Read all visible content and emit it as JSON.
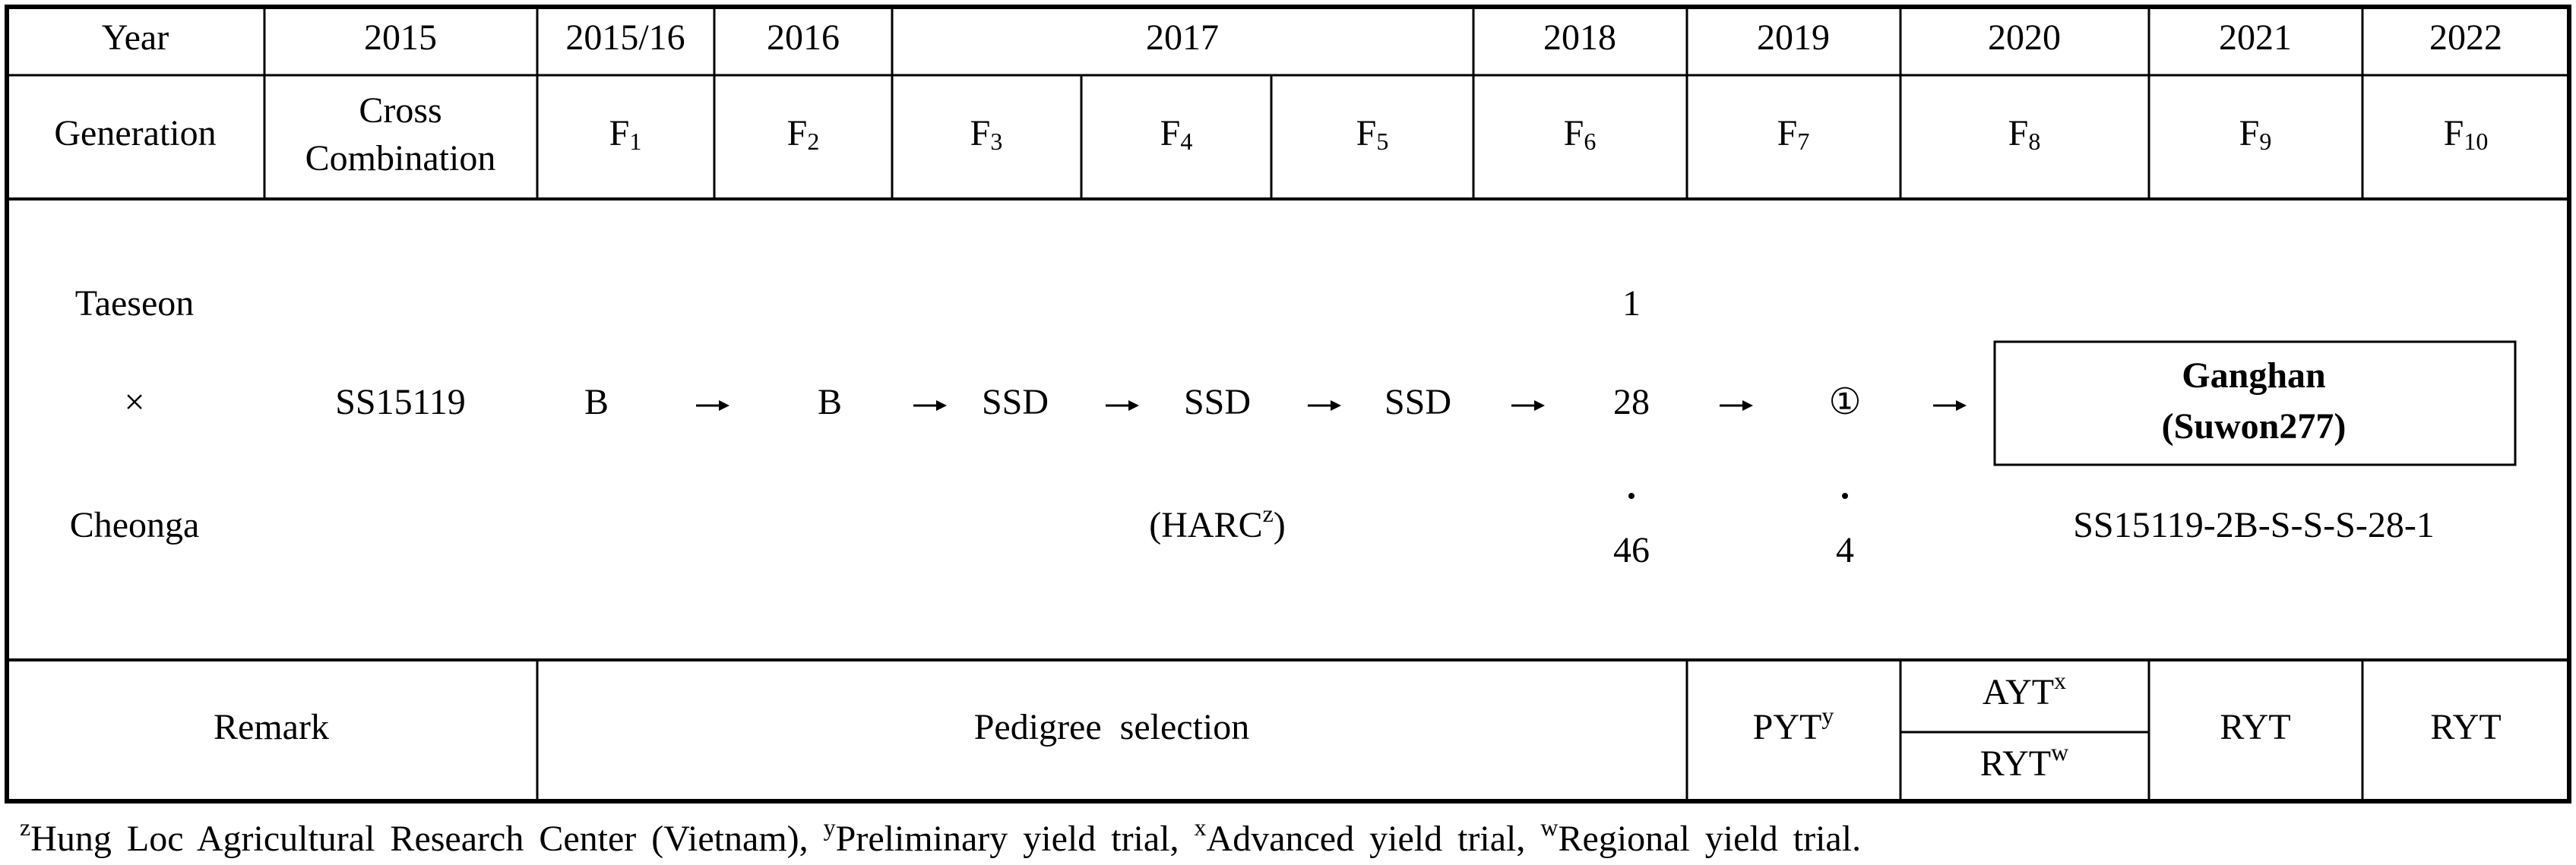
{
  "table": {
    "year_row": [
      "Year",
      "2015",
      "2015/16",
      "2016",
      "2017",
      "2018",
      "2019",
      "2020",
      "2021",
      "2022"
    ],
    "generation_row": {
      "label": "Generation",
      "cross_line1": "Cross",
      "cross_line2": "Combination",
      "generations": [
        {
          "base": "F",
          "sub": "1"
        },
        {
          "base": "F",
          "sub": "2"
        },
        {
          "base": "F",
          "sub": "3"
        },
        {
          "base": "F",
          "sub": "4"
        },
        {
          "base": "F",
          "sub": "5"
        },
        {
          "base": "F",
          "sub": "6"
        },
        {
          "base": "F",
          "sub": "7"
        },
        {
          "base": "F",
          "sub": "8"
        },
        {
          "base": "F",
          "sub": "9"
        },
        {
          "base": "F",
          "sub": "10"
        }
      ]
    },
    "pedigree": {
      "parent1": "Taeseon",
      "cross": "×",
      "parent2": "Cheonga",
      "cross_name": "SS15119",
      "steps": [
        "B",
        "B",
        "SSD",
        "SSD",
        "SSD"
      ],
      "institution": {
        "open": "(HARC",
        "sup": "z",
        "close": ")"
      },
      "f6_top": "1",
      "f6_mid": "28",
      "f6_bottom": "46",
      "f7_mid": "①",
      "f7_bottom": "4",
      "variety_name": "Ganghan",
      "variety_code": "(Suwon277)",
      "variety_pedigree": "SS15119-2B-S-S-S-28-1"
    },
    "remark_row": {
      "label": "Remark",
      "selection": "Pedigree  selection",
      "f7": {
        "text": "PYT",
        "sup": "y"
      },
      "f8_top": {
        "text": "AYT",
        "sup": "x"
      },
      "f8_bottom": {
        "text": "RYT",
        "sup": "w"
      },
      "f9": "RYT",
      "f10": "RYT"
    }
  },
  "footnote": [
    {
      "sup": "z",
      "text": "Hung Loc Agricultural Research Center (Vietnam), "
    },
    {
      "sup": "y",
      "text": "Preliminary yield trial, "
    },
    {
      "sup": "x",
      "text": "Advanced yield trial, "
    },
    {
      "sup": "w",
      "text": "Regional yield trial."
    }
  ]
}
